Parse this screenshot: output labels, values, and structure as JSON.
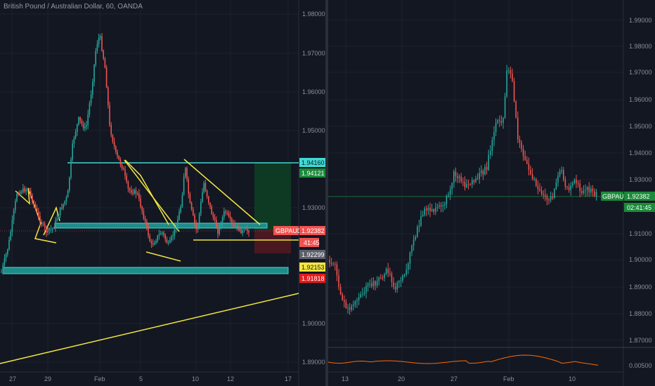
{
  "left": {
    "title": "British Pound / Australian Dollar, 60, OANDA",
    "price_axis": [
      "1.98000",
      "1.97000",
      "1.96000",
      "1.95000",
      "1.93000",
      "1.90000",
      "1.89000"
    ],
    "time_axis": [
      "27",
      "29",
      "Feb",
      "5",
      "10",
      "12",
      "17"
    ],
    "tags": {
      "target": "1.94160",
      "target2": "1.94121",
      "symbol": "GBPAUD",
      "last": "1.92382",
      "countdown": "41:45",
      "stop1": "1.92299",
      "stop2": "1.92153",
      "stop3": "1.91818"
    },
    "colors": {
      "up": "#26a69a",
      "down": "#ef5350",
      "trend": "#f5e642",
      "zone": "#3fd9d2"
    }
  },
  "right": {
    "price_axis": [
      "1.99000",
      "1.98000",
      "1.97000",
      "1.96000",
      "1.95000",
      "1.94000",
      "1.93000",
      "1.91000",
      "1.90000",
      "1.89000",
      "1.88000",
      "1.87000"
    ],
    "time_axis": [
      "13",
      "20",
      "27",
      "Feb",
      "10"
    ],
    "indicator_value": "0.00500",
    "tags": {
      "symbol": "GBPAUD",
      "last": "1.92382",
      "countdown": "02:41:45"
    },
    "colors": {
      "up": "#26a69a",
      "down": "#ef5350",
      "indicator": "#ff6a00"
    }
  }
}
